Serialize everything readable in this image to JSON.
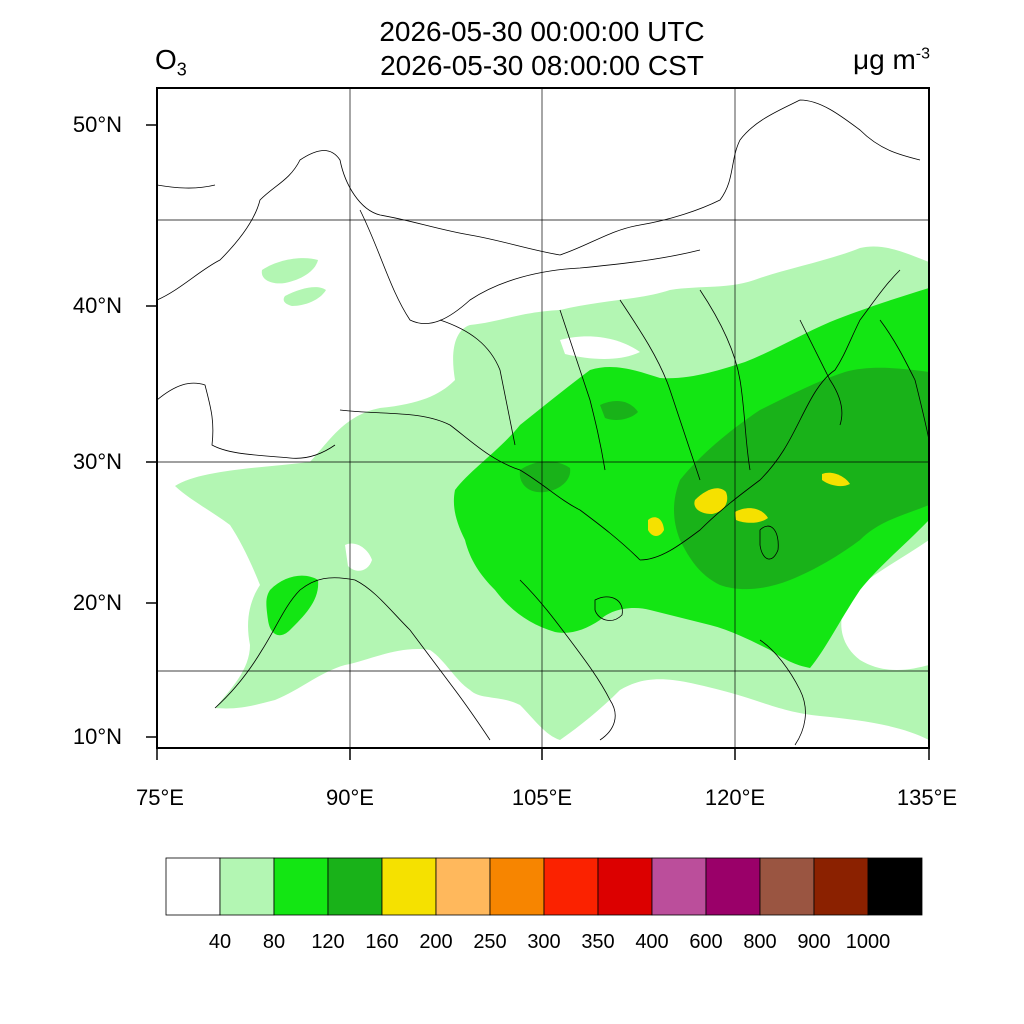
{
  "title": {
    "utc": "2026-05-30 00:00:00 UTC",
    "local": "2026-05-30 08:00:00 CST"
  },
  "variable": {
    "name": "O",
    "subscript": "3"
  },
  "units": {
    "base": "μg m",
    "exponent": "-3"
  },
  "map": {
    "lon_range": [
      75,
      135
    ],
    "lat_range": [
      9,
      52
    ],
    "lat_ticks": [
      {
        "value": 50,
        "label": "50°N"
      },
      {
        "value": 40,
        "label": "40°N"
      },
      {
        "value": 30,
        "label": "30°N"
      },
      {
        "value": 20,
        "label": "20°N"
      },
      {
        "value": 10,
        "label": "10°N"
      }
    ],
    "lon_ticks": [
      {
        "value": 75,
        "label": "75°E"
      },
      {
        "value": 90,
        "label": "90°E"
      },
      {
        "value": 105,
        "label": "105°E"
      },
      {
        "value": 120,
        "label": "120°E"
      },
      {
        "value": 135,
        "label": "135°E"
      }
    ],
    "colors": {
      "c40": "#b3f6b3",
      "c80": "#13e613",
      "c120": "#19b219",
      "c160": "#f5e100"
    }
  },
  "legend": {
    "bins": [
      {
        "label": "40",
        "color": "#ffffff"
      },
      {
        "label": "80",
        "color": "#b3f6b3"
      },
      {
        "label": "120",
        "color": "#13e613"
      },
      {
        "label": "160",
        "color": "#19b219"
      },
      {
        "label": "200",
        "color": "#f5e100"
      },
      {
        "label": "250",
        "color": "#ffb85c"
      },
      {
        "label": "300",
        "color": "#f78500"
      },
      {
        "label": "350",
        "color": "#fb2200"
      },
      {
        "label": "400",
        "color": "#dc0000"
      },
      {
        "label": "600",
        "color": "#bb4e9b"
      },
      {
        "label": "800",
        "color": "#9a0069"
      },
      {
        "label": "900",
        "color": "#9a5541"
      },
      {
        "label": "1000",
        "color": "#8b2100"
      },
      {
        "label": "",
        "color": "#000000"
      }
    ]
  }
}
